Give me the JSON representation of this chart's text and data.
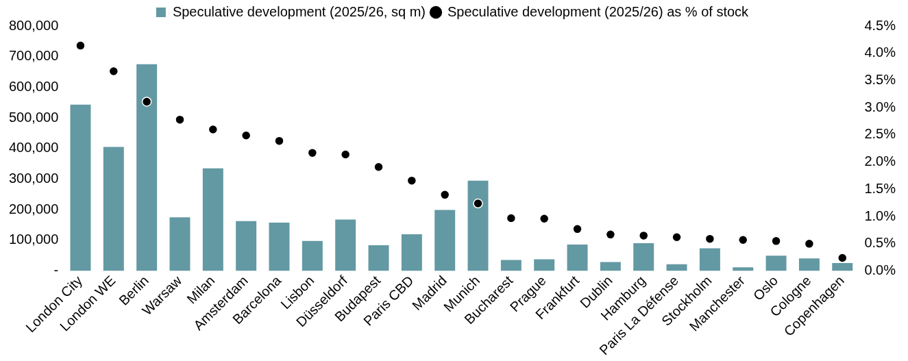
{
  "chart_data": {
    "type": "bar",
    "categories": [
      "London City",
      "London WE",
      "Berlin",
      "Warsaw",
      "Milan",
      "Amsterdam",
      "Barcelona",
      "Lisbon",
      "Düsseldorf",
      "Budapest",
      "Paris CBD",
      "Madrid",
      "Munich",
      "Bucharest",
      "Prague",
      "Frankfurt",
      "Dublin",
      "Hamburg",
      "Paris La Défense",
      "Stockholm",
      "Manchester",
      "Oslo",
      "Cologne",
      "Copenhagen"
    ],
    "series": [
      {
        "name": "Speculative development (2025/26, sq m)",
        "color": "#6399a3",
        "values": [
          543000,
          405000,
          675000,
          175000,
          335000,
          163000,
          158000,
          98000,
          168000,
          84000,
          120000,
          199000,
          295000,
          36000,
          38000,
          86000,
          29000,
          91000,
          22000,
          74000,
          12000,
          50000,
          41000,
          26000
        ]
      },
      {
        "name": "Speculative development (2025/26) as % of stock",
        "type": "scatter",
        "axis": "y2",
        "color": "#000000",
        "values": [
          4.14,
          3.67,
          3.11,
          2.78,
          2.6,
          2.49,
          2.39,
          2.17,
          2.14,
          1.91,
          1.66,
          1.4,
          1.24,
          0.97,
          0.96,
          0.77,
          0.67,
          0.65,
          0.62,
          0.59,
          0.57,
          0.55,
          0.5,
          0.24
        ]
      }
    ],
    "ylim": [
      0,
      800000
    ],
    "yticks": [
      {
        "value": 0,
        "label": "-"
      },
      {
        "value": 100000,
        "label": "100,000"
      },
      {
        "value": 200000,
        "label": "200,000"
      },
      {
        "value": 300000,
        "label": "300,000"
      },
      {
        "value": 400000,
        "label": "400,000"
      },
      {
        "value": 500000,
        "label": "500,000"
      },
      {
        "value": 600000,
        "label": "600,000"
      },
      {
        "value": 700000,
        "label": "700,000"
      },
      {
        "value": 800000,
        "label": "800,000"
      }
    ],
    "y2lim": [
      0,
      4.5
    ],
    "y2ticks": [
      {
        "value": 0,
        "label": "0.0%"
      },
      {
        "value": 0.5,
        "label": "0.5%"
      },
      {
        "value": 1,
        "label": "1.0%"
      },
      {
        "value": 1.5,
        "label": "1.5%"
      },
      {
        "value": 2,
        "label": "2.0%"
      },
      {
        "value": 2.5,
        "label": "2.5%"
      },
      {
        "value": 3,
        "label": "3.0%"
      },
      {
        "value": 3.5,
        "label": "3.5%"
      },
      {
        "value": 4,
        "label": "4.0%"
      },
      {
        "value": 4.5,
        "label": "4.5%"
      }
    ],
    "grid": false,
    "legend": "top",
    "marker": "circle"
  }
}
